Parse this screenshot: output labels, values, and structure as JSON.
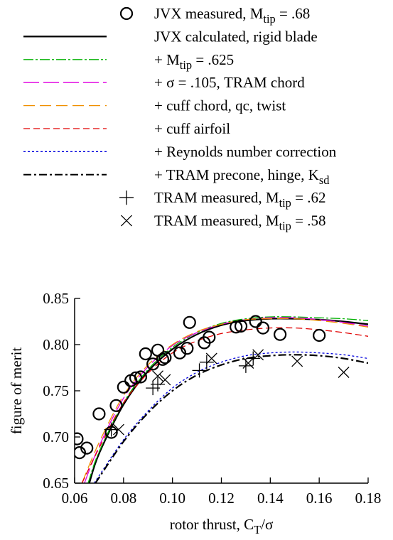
{
  "chart_data": {
    "type": "line",
    "xlabel": "rotor thrust, C_T/σ",
    "ylabel": "figure of merit",
    "xlim": [
      0.06,
      0.18
    ],
    "ylim": [
      0.65,
      0.85
    ],
    "xticks": [
      "0.06",
      "0.08",
      "0.10",
      "0.12",
      "0.14",
      "0.16",
      "0.18"
    ],
    "yticks": [
      "0.65",
      "0.70",
      "0.75",
      "0.80",
      "0.85"
    ],
    "grid": false,
    "legend_position": "top",
    "series": [
      {
        "name": "JVX measured, M_tip = .68",
        "kind": "scatter",
        "marker": "circle",
        "color": "#000000",
        "x": [
          0.061,
          0.062,
          0.065,
          0.07,
          0.075,
          0.077,
          0.08,
          0.083,
          0.085,
          0.087,
          0.089,
          0.092,
          0.094,
          0.096,
          0.097,
          0.103,
          0.106,
          0.107,
          0.113,
          0.115,
          0.126,
          0.128,
          0.134,
          0.137,
          0.144,
          0.16
        ],
        "y": [
          0.698,
          0.683,
          0.688,
          0.725,
          0.705,
          0.734,
          0.754,
          0.761,
          0.764,
          0.765,
          0.79,
          0.779,
          0.794,
          0.784,
          0.786,
          0.791,
          0.796,
          0.824,
          0.802,
          0.808,
          0.819,
          0.82,
          0.825,
          0.818,
          0.811,
          0.81
        ]
      },
      {
        "name": "JVX calculated, rigid blade",
        "kind": "line",
        "color": "#000000",
        "width": 2.2,
        "dash": "",
        "x": [
          0.066,
          0.07,
          0.08,
          0.09,
          0.1,
          0.11,
          0.12,
          0.13,
          0.14,
          0.15,
          0.16,
          0.17,
          0.18
        ],
        "y": [
          0.65,
          0.682,
          0.735,
          0.771,
          0.795,
          0.811,
          0.821,
          0.826,
          0.828,
          0.828,
          0.827,
          0.825,
          0.822
        ]
      },
      {
        "name": "+ M_tip = .625",
        "kind": "line",
        "color": "#00b000",
        "width": 1.3,
        "dash": "14 3 3 3",
        "x": [
          0.0655,
          0.07,
          0.08,
          0.09,
          0.1,
          0.11,
          0.12,
          0.13,
          0.14,
          0.15,
          0.16,
          0.17,
          0.18
        ],
        "y": [
          0.65,
          0.684,
          0.737,
          0.773,
          0.797,
          0.813,
          0.823,
          0.828,
          0.83,
          0.83,
          0.829,
          0.828,
          0.826
        ]
      },
      {
        "name": "+ σ = .105, TRAM chord",
        "kind": "line",
        "color": "#e000e0",
        "width": 1.3,
        "dash": "22 6",
        "x": [
          0.064,
          0.07,
          0.08,
          0.09,
          0.1,
          0.11,
          0.12,
          0.13,
          0.14,
          0.15,
          0.16,
          0.17,
          0.18
        ],
        "y": [
          0.65,
          0.69,
          0.742,
          0.776,
          0.799,
          0.813,
          0.822,
          0.827,
          0.829,
          0.829,
          0.827,
          0.824,
          0.82
        ]
      },
      {
        "name": "+ cuff chord, qc, twist",
        "kind": "line",
        "color": "#f09000",
        "width": 1.3,
        "dash": "16 7",
        "x": [
          0.063,
          0.07,
          0.08,
          0.09,
          0.1,
          0.11,
          0.12,
          0.13,
          0.14,
          0.15,
          0.16,
          0.17,
          0.18
        ],
        "y": [
          0.65,
          0.694,
          0.745,
          0.778,
          0.8,
          0.814,
          0.822,
          0.827,
          0.828,
          0.828,
          0.826,
          0.823,
          0.819
        ]
      },
      {
        "name": "+ cuff airfoil",
        "kind": "line",
        "color": "#e00000",
        "width": 1.3,
        "dash": "9 5",
        "x": [
          0.063,
          0.07,
          0.08,
          0.09,
          0.1,
          0.11,
          0.12,
          0.13,
          0.14,
          0.15,
          0.16,
          0.17,
          0.18
        ],
        "y": [
          0.65,
          0.688,
          0.737,
          0.769,
          0.791,
          0.804,
          0.812,
          0.816,
          0.818,
          0.818,
          0.816,
          0.813,
          0.809
        ]
      },
      {
        "name": "+ Reynolds number correction",
        "kind": "line",
        "color": "#0000dd",
        "width": 1.3,
        "dash": "3 3",
        "x": [
          0.068,
          0.07,
          0.08,
          0.09,
          0.1,
          0.11,
          0.12,
          0.13,
          0.14,
          0.15,
          0.16,
          0.17,
          0.18
        ],
        "y": [
          0.65,
          0.658,
          0.697,
          0.728,
          0.753,
          0.77,
          0.781,
          0.788,
          0.791,
          0.792,
          0.791,
          0.789,
          0.785
        ]
      },
      {
        "name": "+ TRAM precone, hinge, K_sd",
        "kind": "line",
        "color": "#000000",
        "width": 2.2,
        "dash": "11 4 3 4",
        "x": [
          0.0685,
          0.07,
          0.08,
          0.09,
          0.1,
          0.11,
          0.12,
          0.13,
          0.14,
          0.15,
          0.16,
          0.17,
          0.18
        ],
        "y": [
          0.65,
          0.656,
          0.695,
          0.726,
          0.75,
          0.767,
          0.778,
          0.785,
          0.788,
          0.789,
          0.788,
          0.785,
          0.78
        ]
      },
      {
        "name": "TRAM measured, M_tip = .62",
        "kind": "scatter",
        "marker": "plus",
        "color": "#000000",
        "x": [
          0.075,
          0.092,
          0.094,
          0.111,
          0.114,
          0.13,
          0.133
        ],
        "y": [
          0.708,
          0.753,
          0.757,
          0.772,
          0.781,
          0.777,
          0.785
        ]
      },
      {
        "name": "TRAM measured, M_tip = .58",
        "kind": "scatter",
        "marker": "cross",
        "color": "#000000",
        "x": [
          0.078,
          0.094,
          0.097,
          0.116,
          0.131,
          0.135,
          0.151,
          0.17
        ],
        "y": [
          0.708,
          0.766,
          0.762,
          0.785,
          0.78,
          0.789,
          0.782,
          0.77
        ]
      }
    ]
  }
}
